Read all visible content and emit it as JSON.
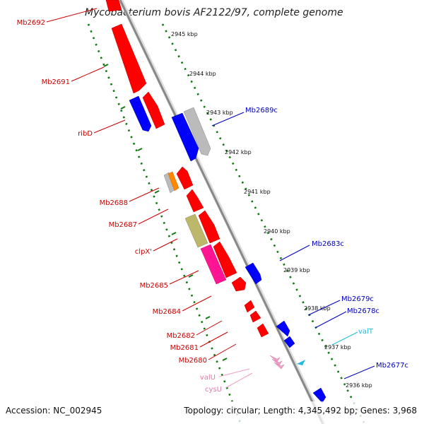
{
  "title": "Mycobacterium bovis AF2122/97, complete genome",
  "footer": {
    "accession": "Accession: NC_002945",
    "topology": "Topology: circular; Length: 4,345,492 bp; Genes: 3,968"
  },
  "kbp_marks": [
    "2945 kbp",
    "2944 kbp",
    "2943 kbp",
    "2942 kbp",
    "2941 kbp",
    "2940 kbp",
    "2939 kbp",
    "2938 kbp",
    "2937 kbp",
    "2936 kbp"
  ],
  "gene_labels": {
    "Mb2692": "Mb2692",
    "Mb2691": "Mb2691",
    "ribD": "ribD",
    "Mb2688": "Mb2688",
    "Mb2687": "Mb2687",
    "clpX": "clpX'",
    "Mb2685": "Mb2685",
    "Mb2684": "Mb2684",
    "Mb2682": "Mb2682",
    "Mb2681": "Mb2681",
    "Mb2680": "Mb2680",
    "valU": "valU",
    "cysU": "cysU",
    "Mb2689c": "Mb2689c",
    "Mb2683c": "Mb2683c",
    "Mb2679c": "Mb2679c",
    "Mb2678c": "Mb2678c",
    "valT": "valT",
    "Mb2677c": "Mb2677c"
  },
  "colors": {
    "forward_cds": "#ff0000",
    "reverse_cds": "#0000ff",
    "pseudogene": "#bbbbbb",
    "orange_feature": "#ff8800",
    "khaki_feature": "#bdb76b",
    "pink_feature": "#ff1493",
    "rrna_trna_pink": "#f0a0c8",
    "trna_cyan": "#22bbdd",
    "backbone": "#888888",
    "tick_dots": "#117711"
  }
}
